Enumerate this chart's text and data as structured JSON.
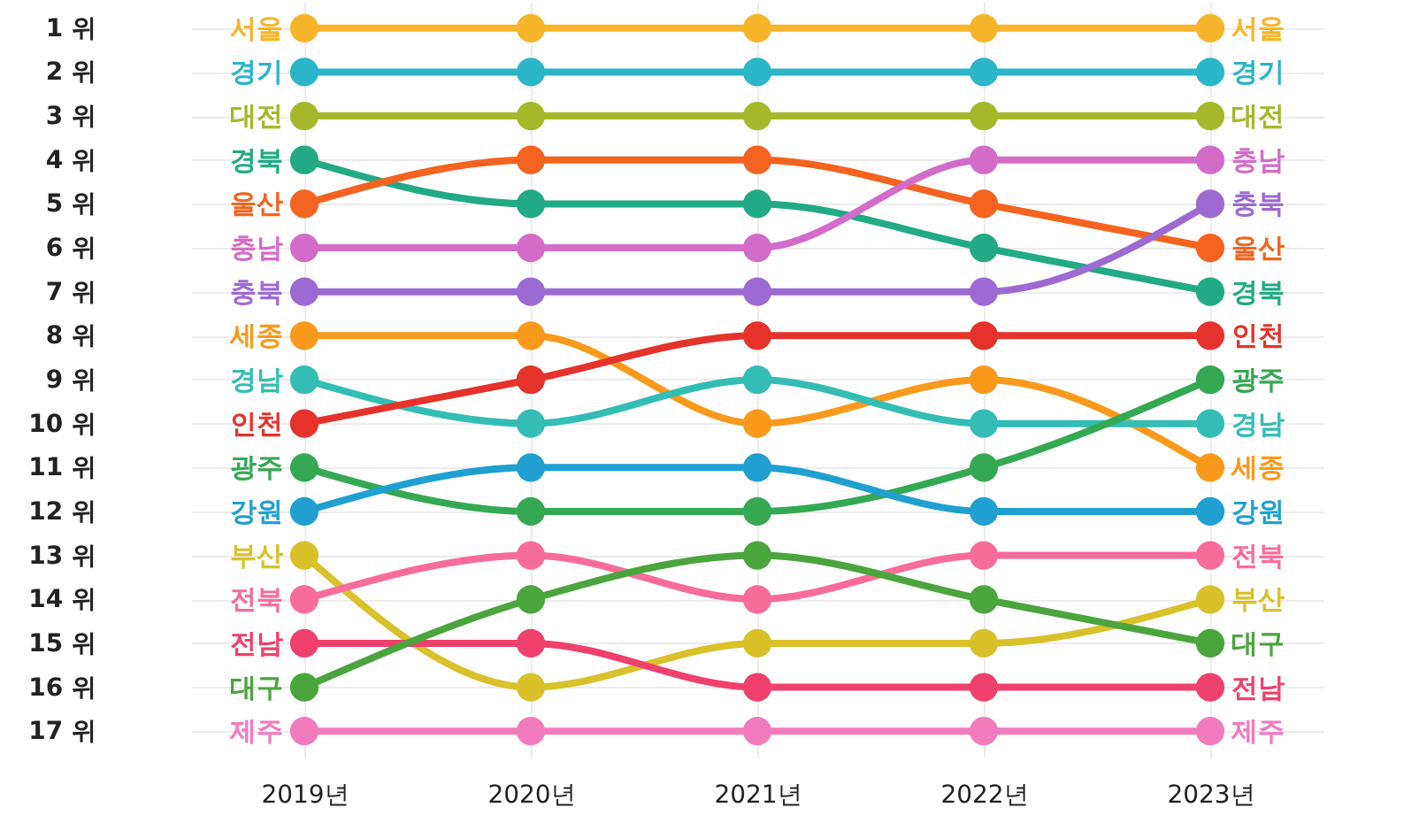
{
  "chart_data": {
    "type": "line",
    "categories": [
      "2019년",
      "2020년",
      "2021년",
      "2022년",
      "2023년"
    ],
    "ylim": [
      17.6,
      0.4
    ],
    "yticks": [
      {
        "value": 1,
        "label": "1 위"
      },
      {
        "value": 2,
        "label": "2 위"
      },
      {
        "value": 3,
        "label": "3 위"
      },
      {
        "value": 4,
        "label": "4 위"
      },
      {
        "value": 5,
        "label": "5 위"
      },
      {
        "value": 6,
        "label": "6 위"
      },
      {
        "value": 7,
        "label": "7 위"
      },
      {
        "value": 8,
        "label": "8 위"
      },
      {
        "value": 9,
        "label": "9 위"
      },
      {
        "value": 10,
        "label": "10 위"
      },
      {
        "value": 11,
        "label": "11 위"
      },
      {
        "value": 12,
        "label": "12 위"
      },
      {
        "value": 13,
        "label": "13 위"
      },
      {
        "value": 14,
        "label": "14 위"
      },
      {
        "value": 15,
        "label": "15 위"
      },
      {
        "value": 16,
        "label": "16 위"
      },
      {
        "value": 17,
        "label": "17 위"
      }
    ],
    "grid": true,
    "marker": "circle",
    "line_style": "solid",
    "series": [
      {
        "name": "서울",
        "color": "#f7b52c",
        "values": [
          1,
          1,
          1,
          1,
          1
        ]
      },
      {
        "name": "경기",
        "color": "#2bb5c9",
        "values": [
          2,
          2,
          2,
          2,
          2
        ]
      },
      {
        "name": "대전",
        "color": "#a5b82a",
        "values": [
          3,
          3,
          3,
          3,
          3
        ]
      },
      {
        "name": "경북",
        "color": "#22aa84",
        "values": [
          4,
          5,
          5,
          6,
          7
        ]
      },
      {
        "name": "울산",
        "color": "#f4631f",
        "values": [
          5,
          4,
          4,
          5,
          6
        ]
      },
      {
        "name": "충남",
        "color": "#d36cc9",
        "values": [
          6,
          6,
          6,
          4,
          4
        ]
      },
      {
        "name": "충북",
        "color": "#9d6ad3",
        "values": [
          7,
          7,
          7,
          7,
          5
        ]
      },
      {
        "name": "세종",
        "color": "#f99a1c",
        "values": [
          8,
          8,
          10,
          9,
          11
        ]
      },
      {
        "name": "경남",
        "color": "#33bdb5",
        "values": [
          9,
          10,
          9,
          10,
          10
        ]
      },
      {
        "name": "인천",
        "color": "#e5322a",
        "values": [
          10,
          9,
          8,
          8,
          8
        ]
      },
      {
        "name": "광주",
        "color": "#34a853",
        "values": [
          11,
          12,
          12,
          11,
          9
        ]
      },
      {
        "name": "강원",
        "color": "#1fa0d0",
        "values": [
          12,
          11,
          11,
          12,
          12
        ]
      },
      {
        "name": "부산",
        "color": "#d9c12a",
        "values": [
          13,
          16,
          15,
          15,
          14
        ]
      },
      {
        "name": "전북",
        "color": "#f86c9a",
        "values": [
          14,
          13,
          14,
          13,
          13
        ]
      },
      {
        "name": "전남",
        "color": "#f0406e",
        "values": [
          15,
          15,
          16,
          16,
          16
        ]
      },
      {
        "name": "대구",
        "color": "#4aa53c",
        "values": [
          16,
          14,
          13,
          14,
          15
        ]
      },
      {
        "name": "제주",
        "color": "#f17bbd",
        "values": [
          17,
          17,
          17,
          17,
          17
        ]
      }
    ]
  }
}
